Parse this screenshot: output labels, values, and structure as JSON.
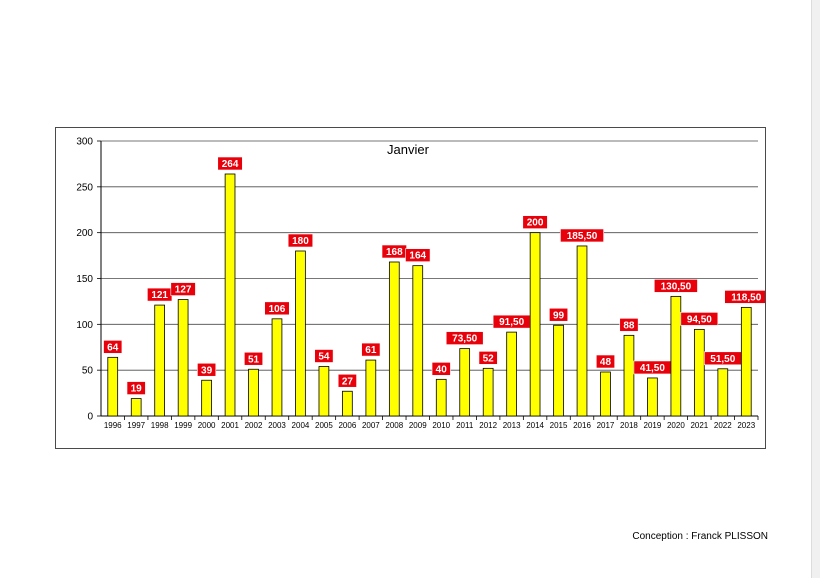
{
  "credit": "Conception : Franck PLISSON",
  "chart_data": {
    "type": "bar",
    "title": "Janvier",
    "xlabel": "",
    "ylabel": "",
    "ylim": [
      0,
      300
    ],
    "yticks": [
      0,
      50,
      100,
      150,
      200,
      250,
      300
    ],
    "grid": true,
    "bar_color": "#ffff00",
    "label_color": "#e8000b",
    "categories": [
      "1996",
      "1997",
      "1998",
      "1999",
      "2000",
      "2001",
      "2002",
      "2003",
      "2004",
      "2005",
      "2006",
      "2007",
      "2008",
      "2009",
      "2010",
      "2011",
      "2012",
      "2013",
      "2014",
      "2015",
      "2016",
      "2017",
      "2018",
      "2019",
      "2020",
      "2021",
      "2022",
      "2023"
    ],
    "values": [
      64,
      19,
      121,
      127,
      39,
      264,
      51,
      106,
      180,
      54,
      27,
      61,
      168,
      164,
      40,
      73.5,
      52,
      91.5,
      200,
      99,
      185.5,
      48,
      88,
      41.5,
      130.5,
      94.5,
      51.5,
      118.5
    ],
    "data_labels": [
      "64",
      "19",
      "121",
      "127",
      "39",
      "264",
      "51",
      "106",
      "180",
      "54",
      "27",
      "61",
      "168",
      "164",
      "40",
      "73,50",
      "52",
      "91,50",
      "200",
      "99",
      "185,50",
      "48",
      "88",
      "41,50",
      "130,50",
      "94,50",
      "51,50",
      "118,50"
    ]
  }
}
